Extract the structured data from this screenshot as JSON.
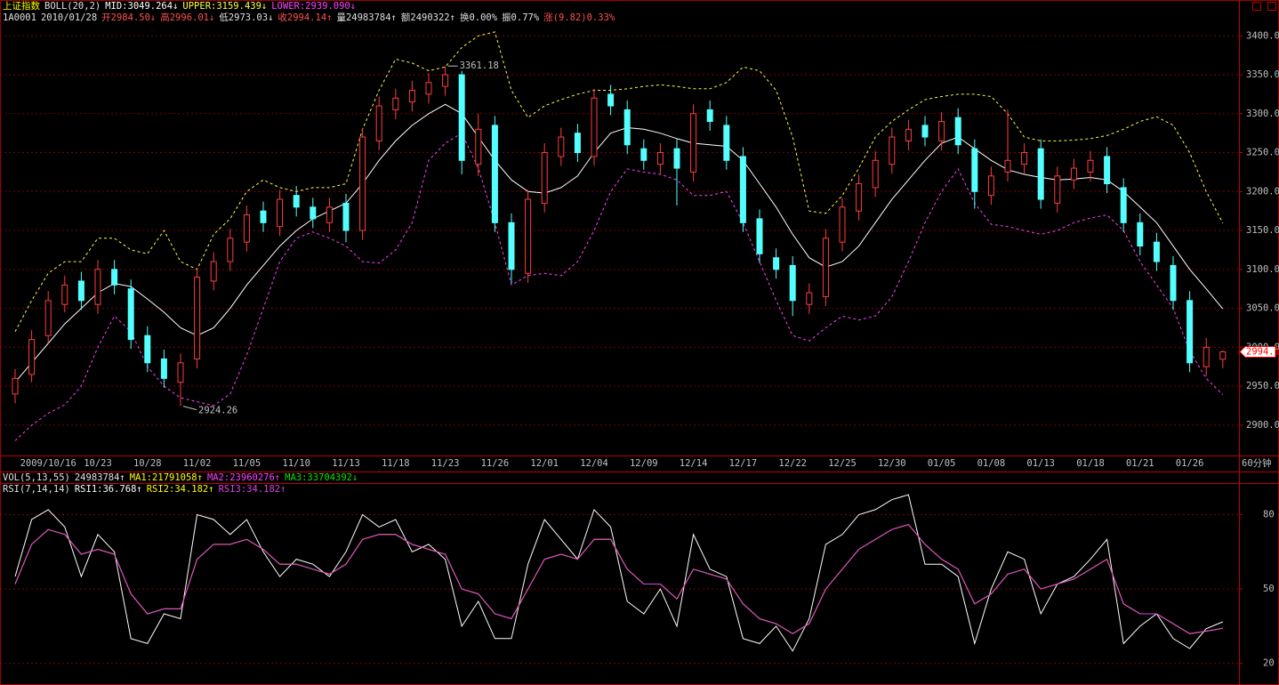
{
  "header": {
    "title": {
      "text": "上证指数",
      "color": "#ffff00"
    },
    "indicator": {
      "text": "BOLL(20,2)",
      "color": "#e0e0e0"
    },
    "line2": [
      {
        "text": "1A0001",
        "color": "#e0e0e0"
      },
      {
        "text": "2010/01/28",
        "color": "#e0e0e0"
      },
      {
        "text": "开2984.50↓",
        "color": "#ff5050"
      },
      {
        "text": "高2996.01↓",
        "color": "#ff5050"
      },
      {
        "text": "低2973.03↓",
        "color": "#e0e0e0"
      },
      {
        "text": "收2994.14↑",
        "color": "#ff5050"
      },
      {
        "text": "量24983784↑",
        "color": "#e0e0e0"
      },
      {
        "text": "额2490322↑",
        "color": "#e0e0e0"
      },
      {
        "text": "换0.00%",
        "color": "#e0e0e0"
      },
      {
        "text": "振0.77%",
        "color": "#e0e0e0"
      },
      {
        "text": "涨(9.82)0.33%",
        "color": "#ff5050"
      }
    ]
  },
  "volume_header": [
    {
      "text": "VOL(5,13,55)",
      "color": "#e0e0e0"
    },
    {
      "text": "24983784↑",
      "color": "#e0e0e0"
    },
    {
      "text": "MA1:21791058↑",
      "color": "#ffff00"
    },
    {
      "text": "MA2:23960276↑",
      "color": "#ff40ff"
    },
    {
      "text": "MA3:33704392↓",
      "color": "#00e600"
    }
  ],
  "chart_data": [
    {
      "type": "candlestick",
      "x_unit_label": "60分钟",
      "up_color": "#ff3c3c",
      "down_color": "#54ffff",
      "grid": true,
      "categories": [
        null,
        null,
        "2009/10/16",
        null,
        null,
        "10/23",
        null,
        null,
        "10/28",
        null,
        null,
        "11/02",
        null,
        null,
        "11/05",
        null,
        null,
        "11/10",
        null,
        null,
        "11/13",
        null,
        null,
        "11/18",
        null,
        null,
        "11/23",
        null,
        null,
        "11/26",
        null,
        null,
        "12/01",
        null,
        null,
        "12/04",
        null,
        null,
        "12/09",
        null,
        null,
        "12/14",
        null,
        null,
        "12/17",
        null,
        null,
        "12/22",
        null,
        null,
        "12/25",
        null,
        null,
        "12/30",
        null,
        null,
        "01/05",
        null,
        null,
        "01/08",
        null,
        null,
        "01/13",
        null,
        null,
        "01/18",
        null,
        null,
        "01/21",
        null,
        null,
        "01/26",
        null,
        null
      ],
      "open": [
        2940,
        2965,
        3015,
        3055,
        3085,
        3055,
        3100,
        3075,
        3015,
        2985,
        2955,
        2985,
        3085,
        3110,
        3135,
        3175,
        3155,
        3195,
        3180,
        3160,
        3185,
        3150,
        3265,
        3305,
        3315,
        3325,
        3335,
        3350,
        3235,
        3285,
        3160,
        3095,
        3185,
        3245,
        3275,
        3245,
        3325,
        3305,
        3255,
        3235,
        3255,
        3225,
        3305,
        3285,
        3245,
        3165,
        3115,
        3105,
        3055,
        3065,
        3135,
        3175,
        3205,
        3235,
        3265,
        3285,
        3265,
        3295,
        3255,
        3195,
        3225,
        3235,
        3255,
        3185,
        3215,
        3225,
        3245,
        3205,
        3160,
        3135,
        3105,
        3060,
        2975,
        2984.5
      ],
      "high": [
        2972,
        3022,
        3072,
        3092,
        3097,
        3112,
        3112,
        3087,
        3027,
        2997,
        2992,
        3102,
        3122,
        3152,
        3182,
        3187,
        3202,
        3207,
        3192,
        3192,
        3197,
        3282,
        3322,
        3332,
        3342,
        3352,
        3361.18,
        3355,
        3300,
        3297,
        3172,
        3202,
        3262,
        3282,
        3287,
        3332,
        3337,
        3317,
        3267,
        3262,
        3267,
        3312,
        3317,
        3297,
        3257,
        3177,
        3127,
        3117,
        3082,
        3152,
        3192,
        3222,
        3252,
        3282,
        3292,
        3297,
        3302,
        3307,
        3267,
        3232,
        3305,
        3262,
        3267,
        3232,
        3242,
        3252,
        3257,
        3217,
        3172,
        3147,
        3117,
        3072,
        3012,
        2996.01
      ],
      "low": [
        2928,
        2955,
        3005,
        3045,
        3048,
        3043,
        3068,
        2998,
        2968,
        2948,
        2924.26,
        2973,
        3073,
        3098,
        3123,
        3148,
        3143,
        3168,
        3153,
        3148,
        3135,
        3138,
        3253,
        3293,
        3303,
        3313,
        3323,
        3222,
        3220,
        3148,
        3082,
        3083,
        3173,
        3233,
        3238,
        3233,
        3298,
        3248,
        3228,
        3223,
        3182,
        3213,
        3278,
        3228,
        3148,
        3108,
        3088,
        3040,
        3043,
        3053,
        3123,
        3163,
        3193,
        3223,
        3253,
        3258,
        3253,
        3248,
        3178,
        3183,
        3213,
        3223,
        3178,
        3173,
        3203,
        3213,
        3198,
        3148,
        3118,
        3098,
        3048,
        2968,
        2963,
        2973.03
      ],
      "close": [
        2960,
        3010,
        3060,
        3080,
        3060,
        3100,
        3080,
        3010,
        2980,
        2960,
        2980,
        3090,
        3110,
        3140,
        3170,
        3160,
        3190,
        3180,
        3165,
        3180,
        3150,
        3270,
        3310,
        3320,
        3330,
        3340,
        3350,
        3240,
        3280,
        3160,
        3100,
        3190,
        3250,
        3270,
        3250,
        3320,
        3310,
        3260,
        3240,
        3250,
        3230,
        3300,
        3290,
        3240,
        3160,
        3120,
        3100,
        3060,
        3070,
        3140,
        3180,
        3210,
        3240,
        3270,
        3280,
        3270,
        3290,
        3260,
        3200,
        3220,
        3240,
        3250,
        3190,
        3220,
        3230,
        3240,
        3210,
        3160,
        3130,
        3110,
        3060,
        2980,
        3000,
        2994.14
      ],
      "series": [
        {
          "label": "MID:3049.264↓",
          "color": "#ffffff",
          "dashed": false,
          "values": [
            2955,
            2980,
            3005,
            3030,
            3050,
            3070,
            3082,
            3078,
            3062,
            3045,
            3025,
            3015,
            3025,
            3050,
            3080,
            3105,
            3130,
            3150,
            3165,
            3175,
            3185,
            3210,
            3240,
            3265,
            3285,
            3300,
            3312,
            3300,
            3270,
            3240,
            3215,
            3200,
            3198,
            3205,
            3220,
            3250,
            3275,
            3282,
            3280,
            3275,
            3268,
            3262,
            3260,
            3258,
            3240,
            3210,
            3180,
            3145,
            3115,
            3103,
            3110,
            3130,
            3160,
            3190,
            3215,
            3240,
            3262,
            3270,
            3255,
            3240,
            3228,
            3222,
            3218,
            3215,
            3216,
            3218,
            3215,
            3200,
            3180,
            3160,
            3130,
            3100,
            3075,
            3049.264
          ]
        },
        {
          "label": "UPPER:3159.439↓",
          "color": "#ffff40",
          "dashed": true,
          "values": [
            3020,
            3060,
            3095,
            3110,
            3110,
            3140,
            3140,
            3125,
            3120,
            3150,
            3110,
            3100,
            3145,
            3165,
            3200,
            3215,
            3205,
            3200,
            3205,
            3205,
            3210,
            3280,
            3330,
            3370,
            3365,
            3355,
            3360,
            3385,
            3400,
            3405,
            3330,
            3295,
            3310,
            3318,
            3325,
            3330,
            3330,
            3332,
            3335,
            3337,
            3335,
            3332,
            3332,
            3340,
            3360,
            3355,
            3330,
            3270,
            3175,
            3172,
            3195,
            3230,
            3270,
            3290,
            3305,
            3318,
            3322,
            3325,
            3325,
            3322,
            3300,
            3270,
            3265,
            3265,
            3266,
            3268,
            3272,
            3280,
            3290,
            3296,
            3285,
            3250,
            3200,
            3159.439
          ]
        },
        {
          "label": "LOWER:2939.090↓",
          "color": "#ff40ff",
          "dashed": true,
          "values": [
            2880,
            2900,
            2915,
            2926,
            2950,
            3000,
            3040,
            3020,
            2975,
            2950,
            2935,
            2930,
            2925,
            2940,
            2990,
            3050,
            3110,
            3140,
            3148,
            3140,
            3130,
            3110,
            3108,
            3125,
            3160,
            3240,
            3262,
            3275,
            3230,
            3160,
            3080,
            3092,
            3095,
            3092,
            3110,
            3150,
            3200,
            3229,
            3225,
            3222,
            3215,
            3195,
            3195,
            3200,
            3160,
            3110,
            3060,
            3015,
            3008,
            3025,
            3040,
            3035,
            3040,
            3065,
            3110,
            3160,
            3200,
            3229,
            3185,
            3158,
            3155,
            3150,
            3145,
            3150,
            3160,
            3166,
            3170,
            3150,
            3110,
            3080,
            3050,
            2995,
            2960,
            2939.09
          ]
        }
      ],
      "ylim": [
        2861,
        3430
      ],
      "yticks": [
        {
          "value": 2900,
          "label": "2900.0"
        },
        {
          "value": 2950,
          "label": "2950.0"
        },
        {
          "value": 3000,
          "label": "3000.0"
        },
        {
          "value": 3050,
          "label": "3050.0"
        },
        {
          "value": 3100,
          "label": "3100.0"
        },
        {
          "value": 3150,
          "label": "3150.0"
        },
        {
          "value": 3200,
          "label": "3200.0"
        },
        {
          "value": 3250,
          "label": "3250.0"
        },
        {
          "value": 3300,
          "label": "3300.0"
        },
        {
          "value": 3350,
          "label": "3350.0"
        },
        {
          "value": 3400,
          "label": "3400.0"
        }
      ],
      "high_label": {
        "value": 3361.18,
        "label": "3361.18"
      },
      "low_label": {
        "value": 2924.26,
        "label": "2924.26"
      },
      "last_price_label": {
        "value": 2994.14,
        "label": "2994.1"
      }
    },
    {
      "type": "line",
      "title": "RSI(7,14,14)",
      "title_color": "#e0e0e0",
      "grid": true,
      "series": [
        {
          "label": "RSI1:36.768↑",
          "color": "#ffffff",
          "values": [
            55,
            78,
            82,
            75,
            55,
            72,
            65,
            30,
            28,
            40,
            38,
            80,
            78,
            72,
            78,
            65,
            55,
            62,
            60,
            55,
            65,
            80,
            75,
            78,
            65,
            68,
            62,
            35,
            45,
            30,
            30,
            60,
            78,
            70,
            62,
            82,
            75,
            45,
            40,
            50,
            35,
            72,
            58,
            55,
            30,
            28,
            35,
            25,
            38,
            68,
            72,
            80,
            82,
            86,
            88,
            60,
            60,
            55,
            28,
            50,
            65,
            62,
            40,
            52,
            55,
            62,
            70,
            28,
            35,
            40,
            30,
            26,
            34,
            36.768
          ]
        },
        {
          "label": "RSI2:34.182↑",
          "color": "#ffff00",
          "values": [
            52,
            68,
            74,
            72,
            64,
            66,
            64,
            48,
            40,
            42,
            42,
            62,
            68,
            68,
            70,
            66,
            60,
            60,
            58,
            56,
            60,
            70,
            72,
            72,
            68,
            66,
            64,
            50,
            48,
            40,
            38,
            50,
            62,
            64,
            62,
            70,
            70,
            58,
            52,
            52,
            46,
            58,
            56,
            54,
            44,
            38,
            36,
            32,
            36,
            50,
            58,
            66,
            70,
            74,
            76,
            68,
            62,
            58,
            44,
            48,
            56,
            58,
            50,
            52,
            54,
            58,
            62,
            44,
            40,
            40,
            36,
            32,
            33,
            34.182
          ]
        },
        {
          "label": "RSI3:34.182↑",
          "color": "#e040e0",
          "values": [
            52,
            68,
            74,
            72,
            64,
            66,
            64,
            48,
            40,
            42,
            42,
            62,
            68,
            68,
            70,
            66,
            60,
            60,
            58,
            56,
            60,
            70,
            72,
            72,
            68,
            66,
            64,
            50,
            48,
            40,
            38,
            50,
            62,
            64,
            62,
            70,
            70,
            58,
            52,
            52,
            46,
            58,
            56,
            54,
            44,
            38,
            36,
            32,
            36,
            50,
            58,
            66,
            70,
            74,
            76,
            68,
            62,
            58,
            44,
            48,
            56,
            58,
            50,
            52,
            54,
            58,
            62,
            44,
            40,
            40,
            36,
            32,
            33,
            34.182
          ]
        }
      ],
      "ylim": [
        12,
        92
      ],
      "yticks": [
        20,
        50,
        80
      ]
    }
  ]
}
